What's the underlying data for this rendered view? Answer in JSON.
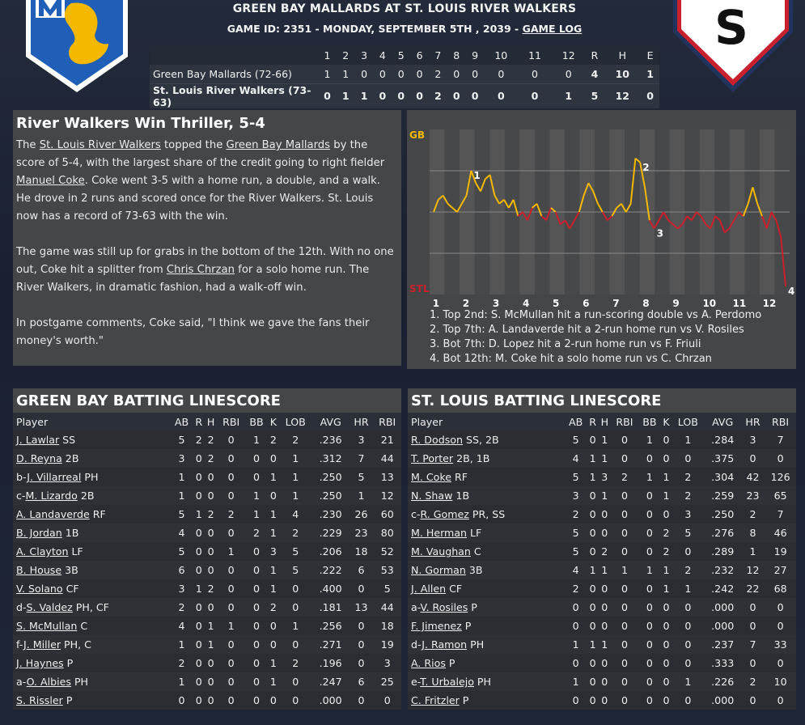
{
  "header": {
    "title": "GREEN BAY MALLARDS AT ST. LOUIS RIVER WALKERS",
    "subtitle_prefix": "GAME ID: 2351 - MONDAY, SEPTEMBER 5TH , 2039 - ",
    "game_log_link": "GAME LOG",
    "home_logo_letter": "S"
  },
  "colors": {
    "gb_blue": "#1f5fb8",
    "gb_yellow": "#f5b800",
    "stl_red": "#c9202e",
    "stl_navy": "#22345e"
  },
  "linescore": {
    "headers": [
      "",
      "1",
      "2",
      "3",
      "4",
      "5",
      "6",
      "7",
      "8",
      "9",
      "10",
      "11",
      "12",
      "R",
      "H",
      "E"
    ],
    "rows": [
      {
        "team": "Green Bay Mallards (72-66)",
        "innings": [
          "1",
          "1",
          "0",
          "0",
          "0",
          "0",
          "2",
          "0",
          "0",
          "0",
          "0",
          "0"
        ],
        "r": "4",
        "h": "10",
        "e": "1",
        "winner": false
      },
      {
        "team": "St. Louis River Walkers (73-63)",
        "innings": [
          "0",
          "1",
          "1",
          "0",
          "0",
          "0",
          "2",
          "0",
          "0",
          "0",
          "0",
          "1"
        ],
        "r": "5",
        "h": "12",
        "e": "0",
        "winner": true
      }
    ]
  },
  "story": {
    "headline": "River Walkers Win Thriller, 5-4",
    "p1": [
      "The ",
      "St. Louis River Walkers",
      " topped the ",
      "Green Bay Mallards",
      " by the score of 5-4, with the largest share of the credit going to right fielder ",
      "Manuel Coke",
      ". Coke went 3-5 with a home run, a double, and a walk. He drove in 2 runs and scored once for the River Walkers. St. Louis now has a record of 73-63 with the win."
    ],
    "p2": [
      "The game was still up for grabs in the bottom of the 12th. With no one out, Coke hit a splitter from ",
      "Chris Chrzan",
      " for a solo home run. The River Walkers, in dramatic fashion, had a walk-off win."
    ],
    "p3": "In postgame comments, Coke said, \"I think we gave the fans their money's worth.\""
  },
  "chart_data": {
    "type": "line",
    "top_label": "GB",
    "bottom_label": "STL",
    "x_ticks": [
      "1",
      "2",
      "3",
      "4",
      "5",
      "6",
      "7",
      "8",
      "9",
      "10",
      "11",
      "12"
    ],
    "ylim": [
      -1,
      1
    ],
    "series": [
      {
        "values": [
          0,
          0.15,
          0.2,
          0.1,
          0.05,
          0.0,
          0.1,
          0.2,
          0.5,
          0.35,
          0.25,
          0.4,
          0.45,
          0.2,
          0.1,
          0.15,
          0.05,
          0.15,
          -0.05,
          0.0,
          -0.1,
          0.05,
          0.1,
          -0.05,
          -0.1,
          0.05,
          0.0,
          -0.15,
          -0.1,
          -0.2,
          -0.1,
          0.0,
          0.2,
          0.35,
          0.25,
          0.1,
          0.0,
          -0.1,
          -0.05,
          0.05,
          0.1,
          0.0,
          0.1,
          0.65,
          0.6,
          0.3,
          -0.1,
          -0.2,
          -0.1,
          0.0,
          -0.1,
          -0.15,
          -0.2,
          -0.15,
          -0.05,
          -0.1,
          0.0,
          -0.05,
          -0.15,
          -0.2,
          -0.05,
          -0.1,
          -0.25,
          -0.2,
          -0.1,
          0.0,
          -0.05,
          0.1,
          0.3,
          0.1,
          -0.05,
          -0.2,
          0.0,
          -0.1,
          -0.3,
          -0.9
        ]
      }
    ],
    "markers": [
      {
        "label": "1",
        "at": 8
      },
      {
        "label": "2",
        "at": 44
      },
      {
        "label": "3",
        "at": 47
      },
      {
        "label": "4",
        "at": 75
      }
    ],
    "events": [
      "1. Top 2nd: S. McMullan hit a run-scoring double vs A. Perdomo",
      "2. Top 7th: A. Landaverde hit a 2-run home run vs V. Rosiles",
      "3. Bot 7th: D. Lopez hit a 2-run home run vs F. Friuli",
      "4. Bot 12th: M. Coke hit a solo home run vs C. Chrzan"
    ]
  },
  "batting_headers": [
    "Player",
    "AB",
    "R",
    "H",
    "RBI",
    "BB",
    "K",
    "LOB",
    "AVG",
    "HR",
    "RBI"
  ],
  "gb_batting": {
    "title": "GREEN BAY BATTING LINESCORE",
    "rows": [
      {
        "pre": "",
        "name": "J. Lawlar",
        "pos": "SS",
        "stats": [
          "5",
          "2",
          "2",
          "0",
          "1",
          "2",
          "2",
          ".236",
          "3",
          "21"
        ]
      },
      {
        "pre": "",
        "name": "D. Reyna",
        "pos": "2B",
        "stats": [
          "3",
          "0",
          "2",
          "0",
          "0",
          "0",
          "1",
          ".312",
          "7",
          "44"
        ]
      },
      {
        "pre": "b-",
        "name": "J. Villarreal",
        "pos": "PH",
        "stats": [
          "1",
          "0",
          "0",
          "0",
          "0",
          "1",
          "1",
          ".250",
          "5",
          "13"
        ]
      },
      {
        "pre": "c-",
        "name": "M. Lizardo",
        "pos": "2B",
        "stats": [
          "1",
          "0",
          "0",
          "0",
          "1",
          "0",
          "1",
          ".250",
          "1",
          "12"
        ]
      },
      {
        "pre": "",
        "name": "A. Landaverde",
        "pos": "RF",
        "stats": [
          "5",
          "1",
          "2",
          "2",
          "1",
          "1",
          "4",
          ".230",
          "26",
          "60"
        ]
      },
      {
        "pre": "",
        "name": "B. Jordan",
        "pos": "1B",
        "stats": [
          "4",
          "0",
          "0",
          "0",
          "2",
          "1",
          "2",
          ".229",
          "23",
          "80"
        ]
      },
      {
        "pre": "",
        "name": "A. Clayton",
        "pos": "LF",
        "stats": [
          "5",
          "0",
          "0",
          "1",
          "0",
          "3",
          "5",
          ".206",
          "18",
          "52"
        ]
      },
      {
        "pre": "",
        "name": "B. House",
        "pos": "3B",
        "stats": [
          "6",
          "0",
          "0",
          "0",
          "0",
          "1",
          "5",
          ".222",
          "6",
          "53"
        ]
      },
      {
        "pre": "",
        "name": "V. Solano",
        "pos": "CF",
        "stats": [
          "3",
          "1",
          "2",
          "0",
          "0",
          "1",
          "0",
          ".400",
          "0",
          "5"
        ]
      },
      {
        "pre": "d-",
        "name": "S. Valdez",
        "pos": "PH, CF",
        "stats": [
          "2",
          "0",
          "0",
          "0",
          "0",
          "2",
          "0",
          ".181",
          "13",
          "44"
        ]
      },
      {
        "pre": "",
        "name": "S. McMullan",
        "pos": "C",
        "stats": [
          "4",
          "0",
          "1",
          "1",
          "0",
          "0",
          "1",
          ".256",
          "0",
          "18"
        ]
      },
      {
        "pre": "f-",
        "name": "J. Miller",
        "pos": "PH, C",
        "stats": [
          "1",
          "0",
          "1",
          "0",
          "0",
          "0",
          "0",
          ".271",
          "0",
          "19"
        ]
      },
      {
        "pre": "",
        "name": "J. Haynes",
        "pos": "P",
        "stats": [
          "2",
          "0",
          "0",
          "0",
          "0",
          "1",
          "2",
          ".196",
          "0",
          "3"
        ]
      },
      {
        "pre": "a-",
        "name": "O. Albies",
        "pos": "PH",
        "stats": [
          "1",
          "0",
          "0",
          "0",
          "0",
          "1",
          "0",
          ".247",
          "6",
          "25"
        ]
      },
      {
        "pre": "",
        "name": "S. Rissler",
        "pos": "P",
        "stats": [
          "0",
          "0",
          "0",
          "0",
          "0",
          "0",
          "0",
          ".000",
          "0",
          "0"
        ]
      }
    ]
  },
  "stl_batting": {
    "title": "ST. LOUIS BATTING LINESCORE",
    "rows": [
      {
        "pre": "",
        "name": "R. Dodson",
        "pos": "SS, 2B",
        "stats": [
          "5",
          "0",
          "1",
          "0",
          "1",
          "0",
          "1",
          ".284",
          "3",
          "7"
        ]
      },
      {
        "pre": "",
        "name": "T. Porter",
        "pos": "2B, 1B",
        "stats": [
          "4",
          "1",
          "1",
          "0",
          "0",
          "0",
          "0",
          ".375",
          "0",
          "0"
        ]
      },
      {
        "pre": "",
        "name": "M. Coke",
        "pos": "RF",
        "stats": [
          "5",
          "1",
          "3",
          "2",
          "1",
          "1",
          "2",
          ".304",
          "42",
          "126"
        ]
      },
      {
        "pre": "",
        "name": "N. Shaw",
        "pos": "1B",
        "stats": [
          "3",
          "0",
          "1",
          "0",
          "0",
          "1",
          "2",
          ".259",
          "23",
          "65"
        ]
      },
      {
        "pre": "c-",
        "name": "R. Gomez",
        "pos": "PR, SS",
        "stats": [
          "2",
          "0",
          "0",
          "0",
          "0",
          "0",
          "3",
          ".250",
          "2",
          "7"
        ]
      },
      {
        "pre": "",
        "name": "M. Herman",
        "pos": "LF",
        "stats": [
          "5",
          "0",
          "0",
          "0",
          "0",
          "2",
          "5",
          ".276",
          "8",
          "46"
        ]
      },
      {
        "pre": "",
        "name": "M. Vaughan",
        "pos": "C",
        "stats": [
          "5",
          "0",
          "2",
          "0",
          "0",
          "2",
          "0",
          ".289",
          "1",
          "19"
        ]
      },
      {
        "pre": "",
        "name": "N. Gorman",
        "pos": "3B",
        "stats": [
          "4",
          "1",
          "1",
          "1",
          "1",
          "1",
          "2",
          ".232",
          "12",
          "27"
        ]
      },
      {
        "pre": "",
        "name": "J. Allen",
        "pos": "CF",
        "stats": [
          "2",
          "0",
          "0",
          "0",
          "0",
          "1",
          "1",
          ".242",
          "22",
          "68"
        ]
      },
      {
        "pre": "a-",
        "name": "V. Rosiles",
        "pos": "P",
        "stats": [
          "0",
          "0",
          "0",
          "0",
          "0",
          "0",
          "0",
          ".000",
          "0",
          "0"
        ]
      },
      {
        "pre": "",
        "name": "F. Jimenez",
        "pos": "P",
        "stats": [
          "0",
          "0",
          "0",
          "0",
          "0",
          "0",
          "0",
          ".000",
          "0",
          "0"
        ]
      },
      {
        "pre": "d-",
        "name": "J. Ramon",
        "pos": "PH",
        "stats": [
          "1",
          "1",
          "1",
          "0",
          "0",
          "0",
          "0",
          ".237",
          "7",
          "33"
        ]
      },
      {
        "pre": "",
        "name": "A. Rios",
        "pos": "P",
        "stats": [
          "0",
          "0",
          "0",
          "0",
          "0",
          "0",
          "0",
          ".333",
          "0",
          "0"
        ]
      },
      {
        "pre": "e-",
        "name": "T. Urbalejo",
        "pos": "PH",
        "stats": [
          "1",
          "0",
          "0",
          "0",
          "0",
          "0",
          "1",
          ".226",
          "2",
          "10"
        ]
      },
      {
        "pre": "",
        "name": "C. Fritzler",
        "pos": "P",
        "stats": [
          "0",
          "0",
          "0",
          "0",
          "0",
          "0",
          "0",
          ".000",
          "0",
          "0"
        ]
      }
    ]
  }
}
